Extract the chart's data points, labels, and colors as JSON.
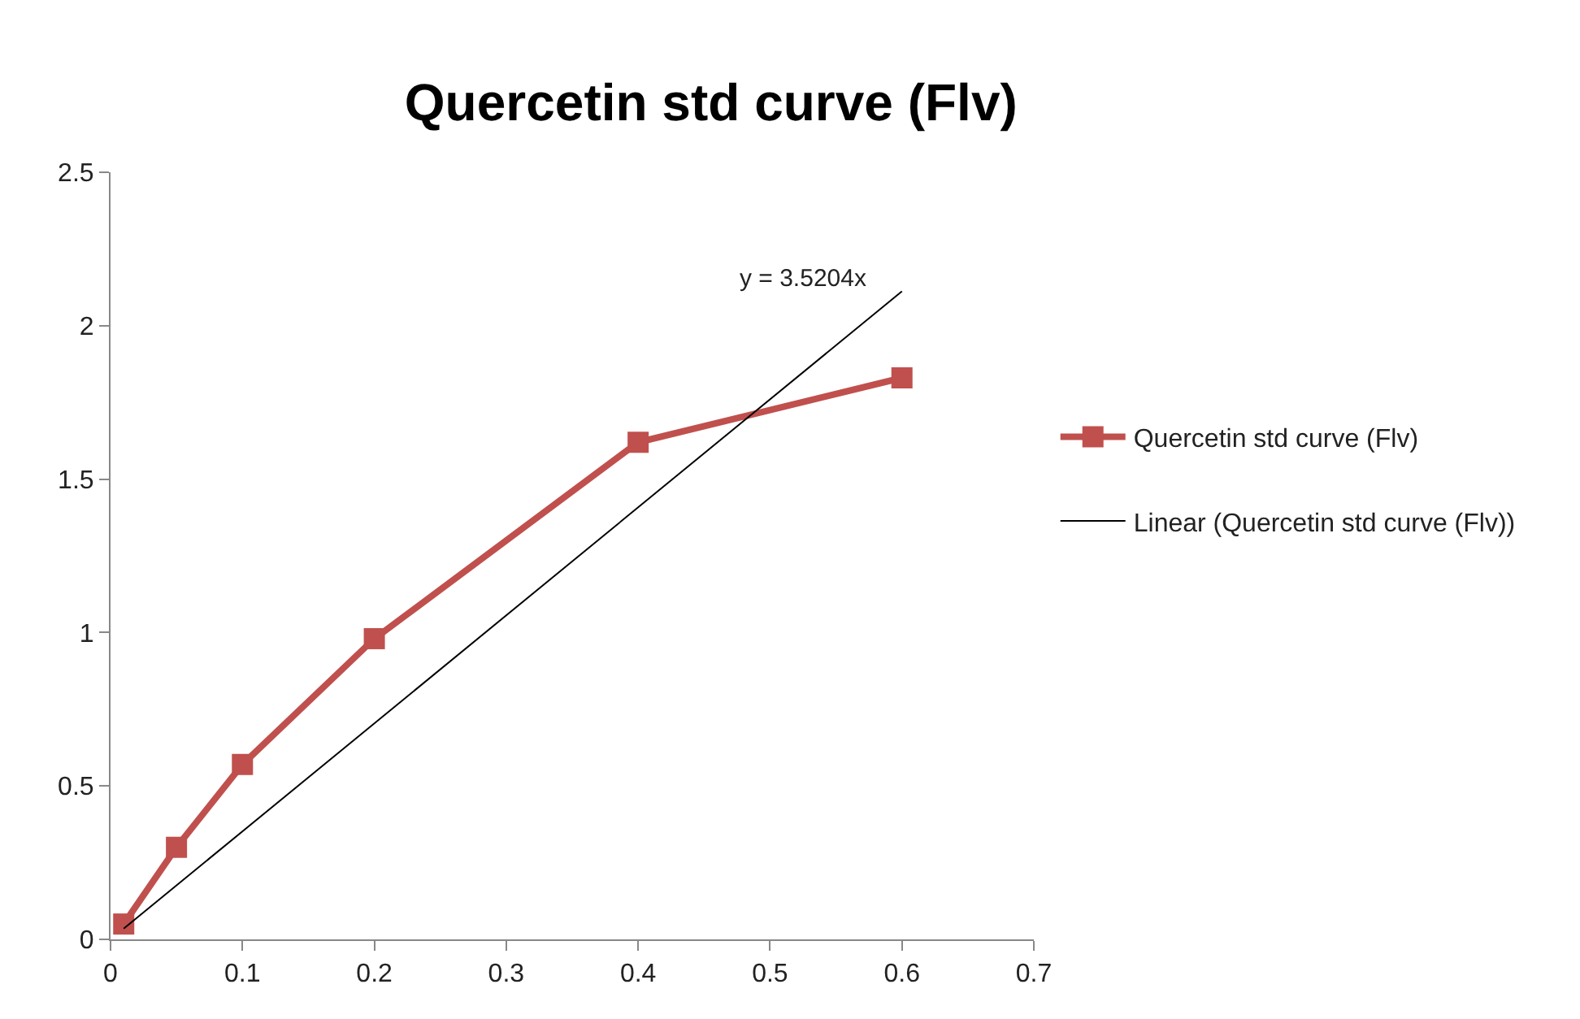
{
  "chart_data": {
    "type": "line",
    "title": "Quercetin std curve (Flv)",
    "xlim": [
      0,
      0.7
    ],
    "xticks": [
      0,
      0.1,
      0.2,
      0.3,
      0.4,
      0.5,
      0.6,
      0.7
    ],
    "ylim": [
      0,
      2.5
    ],
    "yticks": [
      0,
      0.5,
      1,
      1.5,
      2,
      2.5
    ],
    "grid": false,
    "legend": "right",
    "annotations": [
      "y = 3.5204x"
    ],
    "series": [
      {
        "name": "Quercetin std curve (Flv)",
        "color": "#c0504d",
        "marker": "square",
        "x": [
          0.01,
          0.05,
          0.1,
          0.2,
          0.4,
          0.6
        ],
        "values": [
          0.05,
          0.3,
          0.57,
          0.98,
          1.62,
          1.83
        ]
      },
      {
        "name": "Linear (Quercetin std curve (Flv))",
        "color": "#000000",
        "marker": "none",
        "x": [
          0.01,
          0.6
        ],
        "values": [
          0.035,
          2.112
        ]
      }
    ]
  }
}
